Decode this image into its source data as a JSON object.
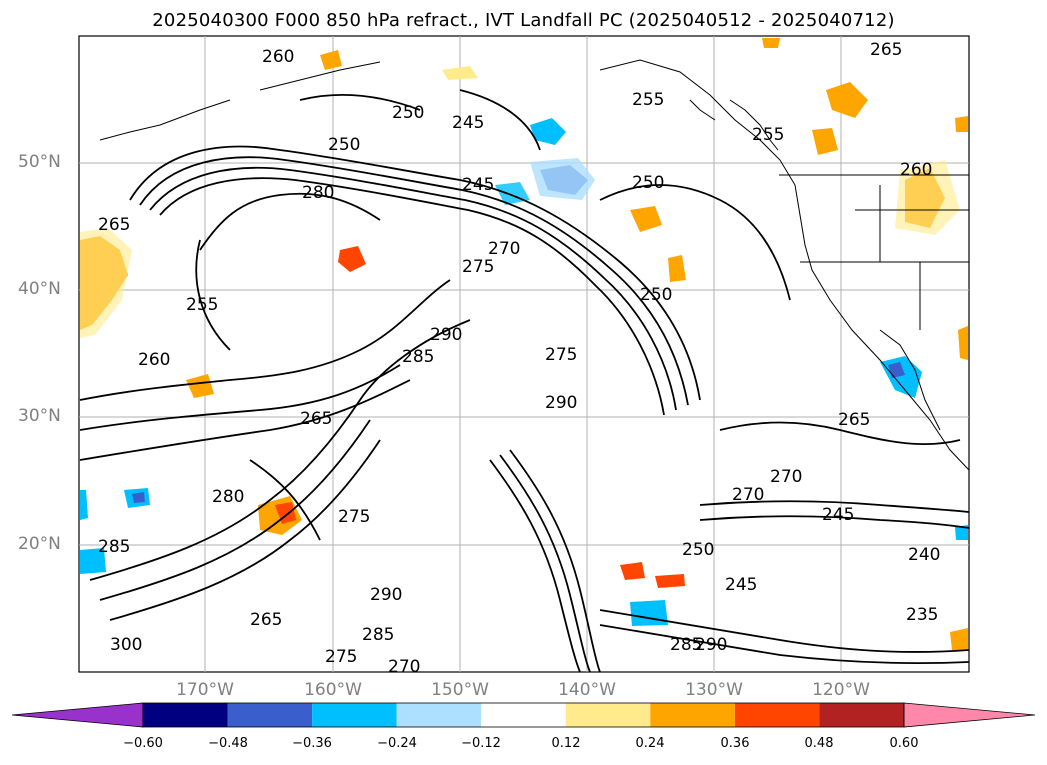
{
  "title": "2025040300 F000 850 hPa refract., IVT Landfall PC (2025040512 - 2025040712)",
  "lat_labels": [
    "50°N",
    "40°N",
    "30°N",
    "20°N"
  ],
  "lon_labels": [
    "170°W",
    "160°W",
    "150°W",
    "140°W",
    "130°W",
    "120°W"
  ],
  "colorbar": {
    "ticks": [
      "−0.60",
      "−0.48",
      "−0.36",
      "−0.24",
      "−0.12",
      "0.12",
      "0.24",
      "0.36",
      "0.48",
      "0.60"
    ],
    "colors": [
      "#9932CC",
      "#000080",
      "#3A5FCD",
      "#00BFFF",
      "#ADDFFF",
      "#FFFFFF",
      "#FFEB8C",
      "#FFA500",
      "#FF4500",
      "#B22222",
      "#FF88AA"
    ]
  },
  "contour_labels": [
    "260",
    "265",
    "250",
    "245",
    "255",
    "250",
    "280",
    "245",
    "255",
    "250",
    "265",
    "260",
    "270",
    "275",
    "255",
    "260",
    "250",
    "290",
    "285",
    "275",
    "290",
    "265",
    "280",
    "265",
    "285",
    "270",
    "245",
    "250",
    "240",
    "235",
    "275",
    "285",
    "290",
    "300",
    "265",
    "270",
    "245",
    "290",
    "285",
    "275",
    "270"
  ],
  "legend_colors": {
    "contour": "#000000",
    "grid": "#b0b0b0",
    "axis_label": "#808080"
  }
}
